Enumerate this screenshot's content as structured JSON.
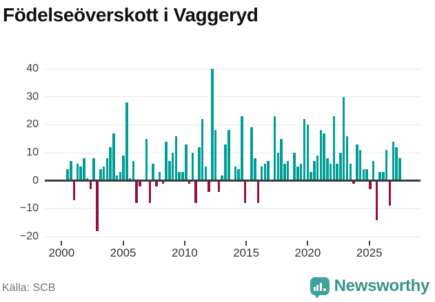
{
  "header": {
    "title": "Födelseöverskott i Vaggeryd"
  },
  "footer": {
    "source": "Källa: SCB",
    "brand": "Newsworthy"
  },
  "chart_data": {
    "type": "bar",
    "title": "Födelseöverskott i Vaggeryd",
    "frequency": "quarterly",
    "x_start_year": 2000,
    "points_per_year": 4,
    "values": [
      4,
      7,
      -7,
      6,
      5,
      8,
      1,
      -3,
      8,
      -18,
      4,
      5,
      8,
      12,
      17,
      2,
      3,
      9,
      28,
      1,
      7,
      -8,
      -2,
      0,
      15,
      -8,
      6,
      -2,
      3,
      -1,
      14,
      7,
      10,
      16,
      3,
      3,
      13,
      -1,
      10,
      -8,
      12,
      22,
      5,
      -4,
      40,
      18,
      -4,
      2,
      13,
      18,
      0,
      5,
      4,
      23,
      -8,
      0,
      19,
      8,
      -8,
      5,
      6,
      7,
      0,
      23,
      10,
      15,
      6,
      7,
      0,
      10,
      5,
      6,
      22,
      20,
      3,
      7,
      9,
      18,
      17,
      8,
      6,
      23,
      6,
      10,
      30,
      16,
      6,
      -1,
      13,
      11,
      4,
      4,
      -3,
      7,
      -14,
      3,
      3,
      11,
      -9,
      14,
      12,
      8
    ],
    "x_tick_years": [
      2000,
      2005,
      2010,
      2015,
      2020,
      2025
    ],
    "y_tick_values": [
      40,
      30,
      20,
      10,
      0,
      -10,
      -20
    ],
    "y_tick_labels": [
      "40",
      "30",
      "20",
      "10",
      "0",
      "−10",
      "−20"
    ],
    "ylim": [
      -20,
      40
    ],
    "grid": true,
    "legend": "none",
    "colors": {
      "positive": "#009e96",
      "negative": "#94113f",
      "zero_line": "#3b3b3b",
      "grid": "#e8e8e8",
      "brand_teal": "#3ea29b"
    }
  }
}
